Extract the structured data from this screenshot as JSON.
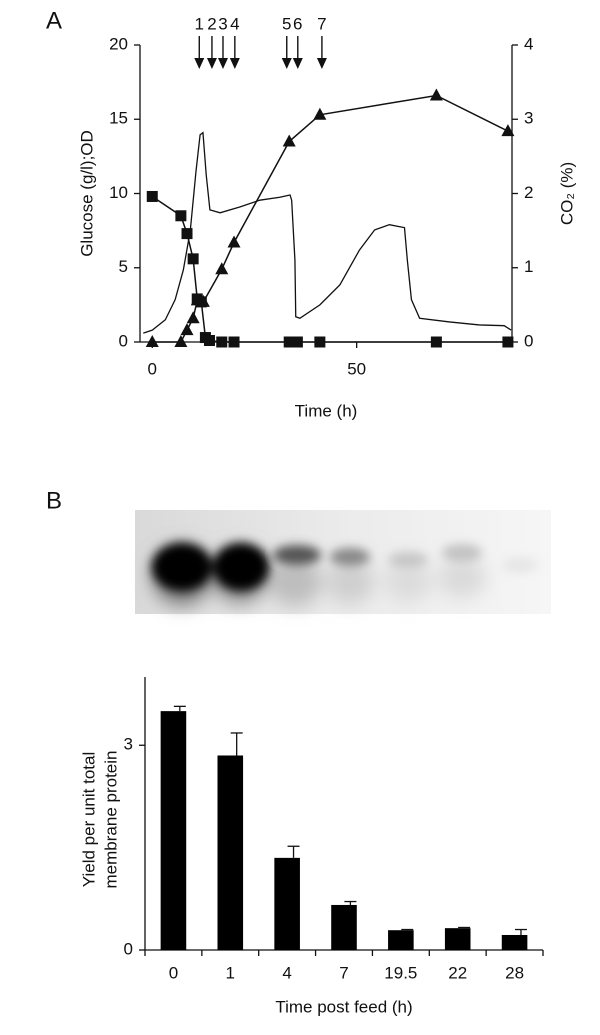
{
  "chart_data": [
    {
      "type": "line",
      "panel": "A",
      "xlabel": "Time (h)",
      "ylabel": "Glucose (g/l);OD",
      "y2label": "CO₂ (%)",
      "xlim": [
        -3,
        88
      ],
      "xticks": [
        0,
        50
      ],
      "ylim": [
        0,
        20
      ],
      "yticks": [
        0,
        5,
        10,
        15,
        20
      ],
      "y2lim": [
        0,
        4
      ],
      "y2ticks": [
        0,
        1,
        2,
        3,
        4
      ],
      "series": [
        {
          "color": "#111111",
          "marker": "square",
          "x": [
            0,
            7,
            8.5,
            10,
            11,
            12,
            13,
            14,
            17,
            20,
            33.5,
            35.5,
            41,
            69.5,
            87
          ],
          "values": [
            9.8,
            8.5,
            7.3,
            5.6,
            2.9,
            2.7,
            0.3,
            0.1,
            0,
            0,
            0,
            0,
            0,
            0,
            0
          ]
        },
        {
          "color": "#111111",
          "marker": "triangle",
          "x": [
            0,
            7,
            8.5,
            10,
            11,
            12.5,
            17,
            20,
            33.5,
            41,
            69.5,
            87
          ],
          "values": [
            0,
            0,
            0.8,
            1.6,
            2.8,
            2.7,
            4.9,
            6.7,
            13.5,
            15.3,
            16.6,
            14.2
          ]
        },
        {
          "color": "#111111",
          "marker": "none",
          "axis": "y2",
          "x": [
            -2.2,
            0,
            3.2,
            5.6,
            7.6,
            9.3,
            10.7,
            11.7,
            12.4,
            13.2,
            14.1,
            16.6,
            21.5,
            26.3,
            31.2,
            33.7,
            34.1,
            34.9,
            35.1,
            36.1,
            41,
            45.9,
            50.7,
            54.4,
            58,
            61.7,
            62.4,
            63.4,
            65.4,
            72.7,
            80,
            86.1,
            87.8
          ],
          "values": [
            0.12,
            0.16,
            0.3,
            0.57,
            0.97,
            1.5,
            2.3,
            2.79,
            2.82,
            2.25,
            1.78,
            1.74,
            1.82,
            1.91,
            1.95,
            1.98,
            1.91,
            1.1,
            0.34,
            0.32,
            0.5,
            0.77,
            1.24,
            1.51,
            1.58,
            1.54,
            1.1,
            0.57,
            0.32,
            0.27,
            0.23,
            0.22,
            0.16
          ]
        }
      ],
      "arrows": [
        {
          "label": "1",
          "x": 11.5
        },
        {
          "label": "2",
          "x": 14.6
        },
        {
          "label": "3",
          "x": 17.3
        },
        {
          "label": "4",
          "x": 20.2
        },
        {
          "label": "5",
          "x": 32.9
        },
        {
          "label": "6",
          "x": 35.6
        },
        {
          "label": "7",
          "x": 41.5
        }
      ]
    },
    {
      "type": "bar",
      "panel": "B",
      "xlabel": "Time post feed (h)",
      "ylabel": [
        "Yield per unit total",
        "membrane protein"
      ],
      "categories": [
        "0",
        "1",
        "4",
        "7",
        "19.5",
        "22",
        "28"
      ],
      "values": [
        3.5,
        2.85,
        1.35,
        0.66,
        0.29,
        0.32,
        0.22
      ],
      "errors": [
        0.07,
        0.33,
        0.17,
        0.05,
        0.01,
        0.01,
        0.08
      ],
      "color": "#000000",
      "ylim": [
        0,
        4
      ],
      "yticks": [
        0,
        3
      ]
    }
  ]
}
